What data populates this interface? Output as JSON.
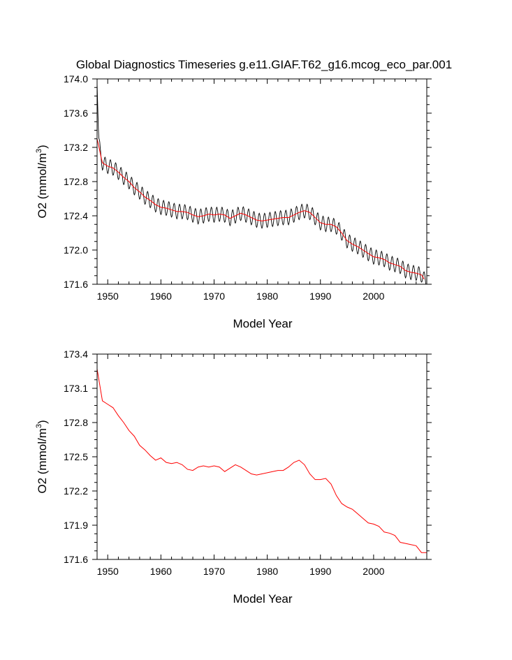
{
  "chart_data": [
    {
      "type": "line",
      "title": "Global Diagnostics Timeseries g.e11.GIAF.T62_g16.mcog_eco_par.001",
      "xlabel": "Model Year",
      "ylabel": "O2 (mmol/m",
      "ylabel_sup": "3",
      "ylabel_close": ")",
      "xlim": [
        1948,
        2010
      ],
      "ylim": [
        171.6,
        174.0
      ],
      "xticks": [
        1950,
        1960,
        1970,
        1980,
        1990,
        2000
      ],
      "xtick_labels": [
        "1950",
        "1960",
        "1970",
        "1980",
        "1990",
        "2000"
      ],
      "yticks": [
        171.6,
        172.0,
        172.4,
        172.8,
        173.2,
        173.6,
        174.0
      ],
      "ytick_labels": [
        "171.6",
        "172.0",
        "172.4",
        "172.8",
        "173.2",
        "173.6",
        "174.0"
      ],
      "grid": false,
      "series": [
        {
          "color": "#000000",
          "kind": "monthly",
          "seasonal_amplitude": 0.085,
          "start": [
            1948.0,
            173.95
          ],
          "x": [
            1948.0,
            1948.3,
            1948.6,
            1949,
            1950,
            1951,
            1952,
            1953,
            1954,
            1955,
            1956,
            1957,
            1958,
            1959,
            1960,
            1961,
            1962,
            1963,
            1964,
            1965,
            1966,
            1967,
            1968,
            1969,
            1970,
            1971,
            1972,
            1973,
            1974,
            1975,
            1976,
            1977,
            1978,
            1979,
            1980,
            1981,
            1982,
            1983,
            1984,
            1985,
            1986,
            1987,
            1988,
            1989,
            1990,
            1991,
            1992,
            1993,
            1994,
            1995,
            1996,
            1997,
            1998,
            1999,
            2000,
            2001,
            2002,
            2003,
            2004,
            2005,
            2006,
            2007,
            2008,
            2009,
            2009.5,
            2010
          ],
          "y": [
            173.95,
            173.3,
            173.12,
            173.02,
            172.98,
            172.96,
            172.91,
            172.85,
            172.8,
            172.73,
            172.68,
            172.62,
            172.58,
            172.53,
            172.5,
            172.49,
            172.47,
            172.45,
            172.45,
            172.44,
            172.41,
            172.39,
            172.4,
            172.42,
            172.41,
            172.42,
            172.41,
            172.37,
            172.4,
            172.43,
            172.41,
            172.38,
            172.35,
            172.34,
            172.35,
            172.36,
            172.37,
            172.38,
            172.38,
            172.41,
            172.44,
            172.46,
            172.44,
            172.38,
            172.32,
            172.3,
            172.3,
            172.27,
            172.2,
            172.11,
            172.07,
            172.04,
            172.0,
            171.96,
            171.92,
            171.91,
            171.89,
            171.85,
            171.83,
            171.81,
            171.76,
            171.74,
            171.73,
            171.71,
            171.66,
            171.62
          ]
        },
        {
          "color": "#ff0000",
          "kind": "annual",
          "x": [
            1948.0,
            1948.3,
            1948.7,
            1949,
            1950,
            1951,
            1952,
            1953,
            1954,
            1955,
            1956,
            1957,
            1958,
            1959,
            1960,
            1961,
            1962,
            1963,
            1964,
            1965,
            1966,
            1967,
            1968,
            1969,
            1970,
            1971,
            1972,
            1973,
            1974,
            1975,
            1976,
            1977,
            1978,
            1979,
            1980,
            1981,
            1982,
            1983,
            1984,
            1985,
            1986,
            1987,
            1988,
            1989,
            1990,
            1991,
            1992,
            1993,
            1994,
            1995,
            1996,
            1997,
            1998,
            1999,
            2000,
            2001,
            2002,
            2003,
            2004,
            2005,
            2006,
            2007,
            2008,
            2009,
            2009.5
          ],
          "y": [
            173.3,
            173.22,
            173.1,
            173.02,
            172.98,
            172.96,
            172.91,
            172.85,
            172.8,
            172.73,
            172.68,
            172.62,
            172.58,
            172.53,
            172.5,
            172.49,
            172.47,
            172.45,
            172.45,
            172.44,
            172.41,
            172.39,
            172.4,
            172.42,
            172.41,
            172.42,
            172.41,
            172.37,
            172.4,
            172.43,
            172.41,
            172.38,
            172.35,
            172.34,
            172.35,
            172.36,
            172.37,
            172.38,
            172.38,
            172.41,
            172.44,
            172.46,
            172.44,
            172.38,
            172.32,
            172.3,
            172.3,
            172.27,
            172.2,
            172.11,
            172.07,
            172.04,
            172.0,
            171.96,
            171.92,
            171.91,
            171.89,
            171.85,
            171.83,
            171.81,
            171.76,
            171.74,
            171.73,
            171.71,
            171.66
          ]
        }
      ]
    },
    {
      "type": "line",
      "title": "",
      "xlabel": "Model Year",
      "ylabel": "O2 (mmol/m",
      "ylabel_sup": "3",
      "ylabel_close": ")",
      "xlim": [
        1948,
        2010
      ],
      "ylim": [
        171.6,
        173.4
      ],
      "xticks": [
        1950,
        1960,
        1970,
        1980,
        1990,
        2000
      ],
      "xtick_labels": [
        "1950",
        "1960",
        "1970",
        "1980",
        "1990",
        "2000"
      ],
      "yticks": [
        171.6,
        171.9,
        172.2,
        172.5,
        172.8,
        173.1,
        173.4
      ],
      "ytick_labels": [
        "171.6",
        "171.9",
        "172.2",
        "172.5",
        "172.8",
        "173.1",
        "173.4"
      ],
      "grid": false,
      "series": [
        {
          "color": "#ff0000",
          "kind": "annual",
          "x": [
            1948.0,
            1949,
            1950,
            1951,
            1952,
            1953,
            1954,
            1955,
            1956,
            1957,
            1958,
            1959,
            1960,
            1961,
            1962,
            1963,
            1964,
            1965,
            1966,
            1967,
            1968,
            1969,
            1970,
            1971,
            1972,
            1973,
            1974,
            1975,
            1976,
            1977,
            1978,
            1979,
            1980,
            1981,
            1982,
            1983,
            1984,
            1985,
            1986,
            1987,
            1988,
            1989,
            1990,
            1991,
            1992,
            1993,
            1994,
            1995,
            1996,
            1997,
            1998,
            1999,
            2000,
            2001,
            2002,
            2003,
            2004,
            2005,
            2006,
            2007,
            2008,
            2009,
            2010
          ],
          "y": [
            173.27,
            172.99,
            172.96,
            172.93,
            172.86,
            172.8,
            172.73,
            172.68,
            172.6,
            172.56,
            172.51,
            172.47,
            172.49,
            172.45,
            172.44,
            172.45,
            172.43,
            172.39,
            172.38,
            172.41,
            172.42,
            172.41,
            172.42,
            172.41,
            172.37,
            172.4,
            172.43,
            172.41,
            172.38,
            172.35,
            172.34,
            172.35,
            172.36,
            172.37,
            172.38,
            172.38,
            172.41,
            172.45,
            172.47,
            172.43,
            172.35,
            172.3,
            172.3,
            172.31,
            172.26,
            172.16,
            172.09,
            172.06,
            172.04,
            172.0,
            171.96,
            171.92,
            171.91,
            171.89,
            171.84,
            171.83,
            171.81,
            171.75,
            171.74,
            171.73,
            171.72,
            171.66,
            171.66
          ]
        }
      ]
    }
  ]
}
